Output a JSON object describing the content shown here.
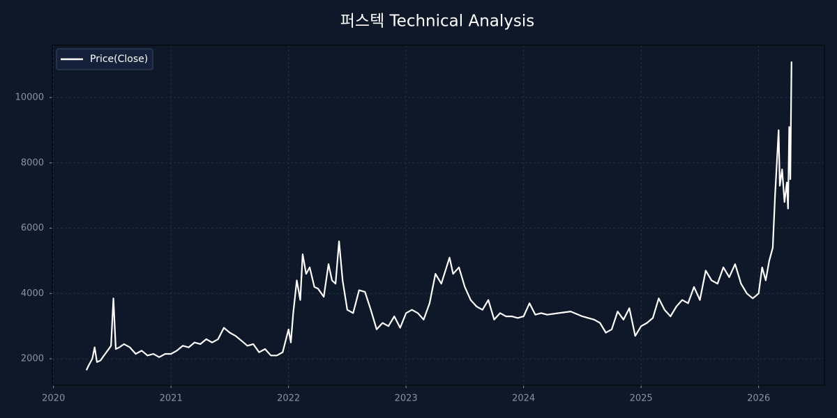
{
  "chart_data": {
    "type": "line",
    "title": "퍼스텍 Technical Analysis",
    "x": [
      2020.28,
      2020.3,
      2020.33,
      2020.35,
      2020.37,
      2020.4,
      2020.43,
      2020.46,
      2020.49,
      2020.51,
      2020.53,
      2020.56,
      2020.6,
      2020.65,
      2020.7,
      2020.75,
      2020.8,
      2020.85,
      2020.9,
      2020.95,
      2021.0,
      2021.05,
      2021.1,
      2021.15,
      2021.2,
      2021.25,
      2021.3,
      2021.35,
      2021.4,
      2021.45,
      2021.5,
      2021.55,
      2021.6,
      2021.65,
      2021.7,
      2021.75,
      2021.8,
      2021.85,
      2021.9,
      2021.95,
      2022.0,
      2022.02,
      2022.04,
      2022.07,
      2022.1,
      2022.12,
      2022.15,
      2022.18,
      2022.22,
      2022.25,
      2022.3,
      2022.34,
      2022.37,
      2022.4,
      2022.43,
      2022.46,
      2022.5,
      2022.55,
      2022.6,
      2022.65,
      2022.7,
      2022.75,
      2022.8,
      2022.85,
      2022.9,
      2022.95,
      2023.0,
      2023.05,
      2023.1,
      2023.15,
      2023.2,
      2023.25,
      2023.3,
      2023.37,
      2023.4,
      2023.45,
      2023.5,
      2023.55,
      2023.6,
      2023.65,
      2023.7,
      2023.75,
      2023.8,
      2023.85,
      2023.9,
      2023.95,
      2024.0,
      2024.05,
      2024.1,
      2024.15,
      2024.2,
      2024.3,
      2024.4,
      2024.5,
      2024.6,
      2024.65,
      2024.7,
      2024.75,
      2024.8,
      2024.85,
      2024.9,
      2024.95,
      2025.0,
      2025.05,
      2025.1,
      2025.15,
      2025.2,
      2025.25,
      2025.3,
      2025.35,
      2025.4,
      2025.45,
      2025.5,
      2025.55,
      2025.6,
      2025.65,
      2025.7,
      2025.75,
      2025.8,
      2025.85,
      2025.9,
      2025.95,
      2026.0,
      2026.03,
      2026.06,
      2026.09,
      2026.12,
      2026.14,
      2026.17,
      2026.18,
      2026.2,
      2026.22,
      2026.24,
      2026.25,
      2026.26,
      2026.27,
      2026.28
    ],
    "series": [
      {
        "name": "Price(Close)",
        "color": "#ffffff",
        "values": [
          1650,
          1800,
          2000,
          2350,
          1900,
          1950,
          2100,
          2250,
          2400,
          3850,
          2300,
          2350,
          2450,
          2350,
          2150,
          2250,
          2100,
          2150,
          2050,
          2150,
          2150,
          2250,
          2400,
          2350,
          2500,
          2450,
          2600,
          2500,
          2600,
          2950,
          2800,
          2700,
          2550,
          2400,
          2450,
          2200,
          2300,
          2100,
          2100,
          2200,
          2900,
          2500,
          3400,
          4400,
          3800,
          5200,
          4600,
          4800,
          4200,
          4150,
          3900,
          4900,
          4400,
          4300,
          5600,
          4400,
          3500,
          3400,
          4100,
          4050,
          3500,
          2900,
          3100,
          3000,
          3300,
          2950,
          3400,
          3500,
          3400,
          3200,
          3700,
          4600,
          4300,
          5100,
          4600,
          4800,
          4200,
          3800,
          3600,
          3500,
          3800,
          3200,
          3400,
          3300,
          3300,
          3250,
          3300,
          3700,
          3350,
          3400,
          3350,
          3400,
          3450,
          3300,
          3200,
          3100,
          2800,
          2900,
          3450,
          3200,
          3550,
          2700,
          3000,
          3100,
          3250,
          3850,
          3500,
          3300,
          3600,
          3800,
          3700,
          4200,
          3800,
          4700,
          4400,
          4300,
          4800,
          4500,
          4900,
          4300,
          4000,
          3850,
          4000,
          4800,
          4400,
          5000,
          5400,
          7000,
          9000,
          7300,
          7800,
          6800,
          7400,
          6600,
          9100,
          7500,
          11100
        ]
      }
    ],
    "xlim": [
      2019.99,
      2026.56
    ],
    "xticks": [
      2020,
      2021,
      2022,
      2023,
      2024,
      2025,
      2026
    ],
    "ylim": [
      1190,
      11600
    ],
    "yticks": [
      2000,
      4000,
      6000,
      8000,
      10000
    ],
    "grid": true,
    "legend": "upper left"
  }
}
